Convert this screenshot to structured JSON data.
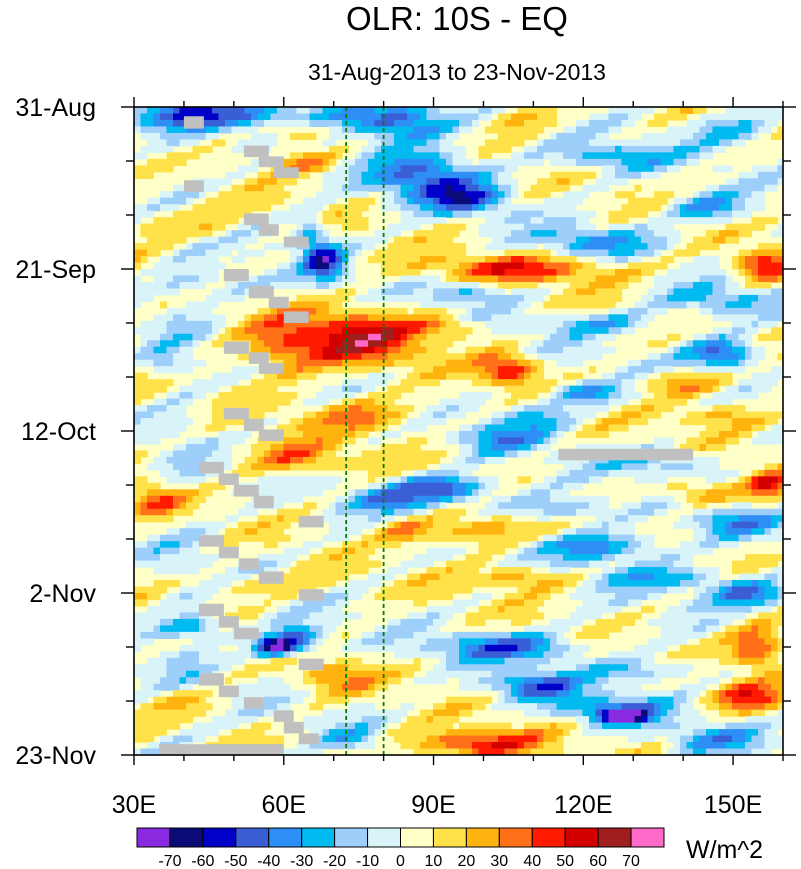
{
  "chart_data": {
    "type": "heatmap",
    "title": "OLR: 10S - EQ",
    "subtitle": "31-Aug-2013 to 23-Nov-2013",
    "x": {
      "range": [
        30,
        160
      ],
      "ticks": [
        30,
        60,
        90,
        120,
        150
      ],
      "tick_labels": [
        "30E",
        "60E",
        "90E",
        "120E",
        "150E"
      ]
    },
    "y": {
      "range_days": [
        0,
        84
      ],
      "ticks": [
        0,
        21,
        42,
        63,
        84
      ],
      "tick_labels": [
        "31-Aug",
        "21-Sep",
        "12-Oct",
        "2-Nov",
        "23-Nov"
      ],
      "minor_tick_step_days": 7
    },
    "reference_lines_lon": [
      72.5,
      80
    ],
    "colorbar": {
      "levels": [
        -70,
        -60,
        -50,
        -40,
        -30,
        -20,
        -10,
        0,
        10,
        20,
        30,
        40,
        50,
        60,
        70
      ],
      "level_labels": [
        "-70",
        "-60",
        "-50",
        "-40",
        "-30",
        "-20",
        "-10",
        "0",
        "10",
        "20",
        "30",
        "40",
        "50",
        "60",
        "70"
      ],
      "colors": [
        "#8a2be2",
        "#0a0a78",
        "#0000c8",
        "#3a5ed6",
        "#2d8ef5",
        "#00baf0",
        "#9dcffa",
        "#d8f4f8",
        "#ffffc8",
        "#ffe14a",
        "#ffb30f",
        "#ff7018",
        "#ff1a00",
        "#d40000",
        "#a01e1e",
        "#ff69c8"
      ],
      "units": "W/m^2"
    },
    "missing_color": "#c0c0c0",
    "missing_blocks": [
      {
        "lon0": 40,
        "lon1": 44,
        "d0": 1.2,
        "d1": 2.8
      },
      {
        "lon0": 52,
        "lon1": 57,
        "d0": 5,
        "d1": 6.5
      },
      {
        "lon0": 55,
        "lon1": 60,
        "d0": 6.4,
        "d1": 7.8
      },
      {
        "lon0": 58,
        "lon1": 63,
        "d0": 7.8,
        "d1": 9.2
      },
      {
        "lon0": 40,
        "lon1": 44,
        "d0": 9.5,
        "d1": 11
      },
      {
        "lon0": 52,
        "lon1": 57,
        "d0": 13.8,
        "d1": 15.3
      },
      {
        "lon0": 55,
        "lon1": 59,
        "d0": 15.2,
        "d1": 16.7
      },
      {
        "lon0": 60,
        "lon1": 65,
        "d0": 16.8,
        "d1": 18.2
      },
      {
        "lon0": 48,
        "lon1": 53,
        "d0": 21,
        "d1": 22.6
      },
      {
        "lon0": 53,
        "lon1": 58,
        "d0": 23.2,
        "d1": 24.8
      },
      {
        "lon0": 57,
        "lon1": 61,
        "d0": 24.6,
        "d1": 26.1
      },
      {
        "lon0": 60,
        "lon1": 65,
        "d0": 26.5,
        "d1": 28
      },
      {
        "lon0": 48,
        "lon1": 53,
        "d0": 30.4,
        "d1": 32
      },
      {
        "lon0": 53,
        "lon1": 57,
        "d0": 31.8,
        "d1": 33.3
      },
      {
        "lon0": 55,
        "lon1": 60,
        "d0": 33.2,
        "d1": 34.6
      },
      {
        "lon0": 48,
        "lon1": 53,
        "d0": 39,
        "d1": 40.5
      },
      {
        "lon0": 52,
        "lon1": 56,
        "d0": 40.4,
        "d1": 42
      },
      {
        "lon0": 55,
        "lon1": 60,
        "d0": 41.8,
        "d1": 43.3
      },
      {
        "lon0": 43,
        "lon1": 48,
        "d0": 46,
        "d1": 47.5
      },
      {
        "lon0": 47,
        "lon1": 51,
        "d0": 47.5,
        "d1": 49
      },
      {
        "lon0": 50,
        "lon1": 55,
        "d0": 49,
        "d1": 50.5
      },
      {
        "lon0": 54,
        "lon1": 58,
        "d0": 50.4,
        "d1": 52
      },
      {
        "lon0": 63,
        "lon1": 68,
        "d0": 53,
        "d1": 54.5
      },
      {
        "lon0": 43,
        "lon1": 48,
        "d0": 55.5,
        "d1": 57
      },
      {
        "lon0": 47,
        "lon1": 51,
        "d0": 57,
        "d1": 58.5
      },
      {
        "lon0": 51,
        "lon1": 55,
        "d0": 58.5,
        "d1": 60
      },
      {
        "lon0": 55,
        "lon1": 60,
        "d0": 60.2,
        "d1": 61.8
      },
      {
        "lon0": 63,
        "lon1": 68,
        "d0": 62.5,
        "d1": 64
      },
      {
        "lon0": 43,
        "lon1": 48,
        "d0": 64.4,
        "d1": 66
      },
      {
        "lon0": 47,
        "lon1": 51,
        "d0": 66,
        "d1": 67.5
      },
      {
        "lon0": 50,
        "lon1": 55,
        "d0": 67.5,
        "d1": 69
      },
      {
        "lon0": 63,
        "lon1": 68,
        "d0": 71.5,
        "d1": 73
      },
      {
        "lon0": 43,
        "lon1": 48,
        "d0": 73.4,
        "d1": 75
      },
      {
        "lon0": 47,
        "lon1": 51,
        "d0": 75,
        "d1": 76.5
      },
      {
        "lon0": 52,
        "lon1": 56,
        "d0": 76.5,
        "d1": 78
      },
      {
        "lon0": 58,
        "lon1": 62,
        "d0": 78.2,
        "d1": 79.7
      },
      {
        "lon0": 60,
        "lon1": 64,
        "d0": 79.7,
        "d1": 81.2
      },
      {
        "lon0": 63,
        "lon1": 67,
        "d0": 81.2,
        "d1": 82.6
      },
      {
        "lon0": 35,
        "lon1": 60,
        "d0": 82.6,
        "d1": 84
      },
      {
        "lon0": 115,
        "lon1": 142,
        "d0": 44.3,
        "d1": 45.8
      }
    ],
    "features": [
      {
        "lon": 48,
        "day": 1,
        "rx": 28,
        "ry": 2.0,
        "amp": -42
      },
      {
        "lon": 63,
        "day": 3,
        "rx": 7,
        "ry": 1.6,
        "amp": 32
      },
      {
        "lon": 64,
        "day": 7,
        "rx": 7,
        "ry": 1.6,
        "amp": 30
      },
      {
        "lon": 83,
        "day": 2,
        "rx": 10,
        "ry": 2.6,
        "amp": -50
      },
      {
        "lon": 89,
        "day": 9,
        "rx": 11,
        "ry": 3.2,
        "amp": -48
      },
      {
        "lon": 97,
        "day": 12,
        "rx": 8,
        "ry": 1.8,
        "amp": -40
      },
      {
        "lon": 125,
        "day": 6.5,
        "rx": 12,
        "ry": 1.7,
        "amp": -32
      },
      {
        "lon": 145,
        "day": 13,
        "rx": 8,
        "ry": 1.8,
        "amp": -35
      },
      {
        "lon": 150,
        "day": 3,
        "rx": 9,
        "ry": 2.2,
        "amp": -28
      },
      {
        "lon": 122,
        "day": 17.5,
        "rx": 12,
        "ry": 2.0,
        "amp": -30
      },
      {
        "lon": 108,
        "day": 1.3,
        "rx": 8,
        "ry": 1.6,
        "amp": 22
      },
      {
        "lon": 40,
        "day": 15,
        "rx": 10,
        "ry": 2.5,
        "amp": 25
      },
      {
        "lon": 68,
        "day": 20,
        "rx": 4,
        "ry": 2.5,
        "amp": -55
      },
      {
        "lon": 65,
        "day": 16,
        "rx": 3,
        "ry": 2.2,
        "amp": -30
      },
      {
        "lon": 108,
        "day": 21,
        "rx": 20,
        "ry": 1.8,
        "amp": 38
      },
      {
        "lon": 156,
        "day": 20.5,
        "rx": 6,
        "ry": 2.0,
        "amp": 45
      },
      {
        "lon": 47,
        "day": 23,
        "rx": 10,
        "ry": 1.8,
        "amp": -20
      },
      {
        "lon": 97,
        "day": 24,
        "rx": 8,
        "ry": 1.5,
        "amp": -28
      },
      {
        "lon": 146,
        "day": 25,
        "rx": 10,
        "ry": 1.8,
        "amp": -30
      },
      {
        "lon": 76,
        "day": 30,
        "rx": 12,
        "ry": 3.5,
        "amp": 48
      },
      {
        "lon": 60,
        "day": 31,
        "rx": 10,
        "ry": 4.0,
        "amp": 35
      },
      {
        "lon": 105,
        "day": 34,
        "rx": 6,
        "ry": 2.0,
        "amp": 45
      },
      {
        "lon": 92,
        "day": 28.5,
        "rx": 8,
        "ry": 1.4,
        "amp": 25
      },
      {
        "lon": 123,
        "day": 28,
        "rx": 14,
        "ry": 1.5,
        "amp": -26
      },
      {
        "lon": 148,
        "day": 32,
        "rx": 7,
        "ry": 2.0,
        "amp": -55
      },
      {
        "lon": 120,
        "day": 37,
        "rx": 8,
        "ry": 1.5,
        "amp": -35
      },
      {
        "lon": 140,
        "day": 36,
        "rx": 9,
        "ry": 1.6,
        "amp": 30
      },
      {
        "lon": 36,
        "day": 33,
        "rx": 4,
        "ry": 1.5,
        "amp": -22
      },
      {
        "lon": 76,
        "day": 40,
        "rx": 12,
        "ry": 2.2,
        "amp": 28
      },
      {
        "lon": 110,
        "day": 40,
        "rx": 8,
        "ry": 2.0,
        "amp": -25
      },
      {
        "lon": 148,
        "day": 40,
        "rx": 10,
        "ry": 1.6,
        "amp": 25
      },
      {
        "lon": 62,
        "day": 45.5,
        "rx": 10,
        "ry": 2.2,
        "amp": 32
      },
      {
        "lon": 104,
        "day": 43,
        "rx": 9,
        "ry": 1.8,
        "amp": -30
      },
      {
        "lon": 135,
        "day": 46,
        "rx": 10,
        "ry": 1.7,
        "amp": -25
      },
      {
        "lon": 92,
        "day": 49.5,
        "rx": 10,
        "ry": 1.8,
        "amp": -55
      },
      {
        "lon": 80,
        "day": 51,
        "rx": 8,
        "ry": 1.6,
        "amp": -30
      },
      {
        "lon": 116,
        "day": 52,
        "rx": 10,
        "ry": 1.6,
        "amp": -30
      },
      {
        "lon": 143,
        "day": 50,
        "rx": 8,
        "ry": 1.6,
        "amp": 30
      },
      {
        "lon": 157,
        "day": 49,
        "rx": 4,
        "ry": 1.8,
        "amp": 40
      },
      {
        "lon": 35,
        "day": 51,
        "rx": 6,
        "ry": 2.2,
        "amp": 32
      },
      {
        "lon": 98,
        "day": 55,
        "rx": 10,
        "ry": 2.0,
        "amp": 35
      },
      {
        "lon": 84,
        "day": 55,
        "rx": 5,
        "ry": 1.6,
        "amp": 25
      },
      {
        "lon": 124,
        "day": 57,
        "rx": 13,
        "ry": 2.0,
        "amp": -38
      },
      {
        "lon": 150,
        "day": 54,
        "rx": 9,
        "ry": 1.8,
        "amp": -32
      },
      {
        "lon": 108,
        "day": 61,
        "rx": 9,
        "ry": 1.6,
        "amp": 30
      },
      {
        "lon": 137,
        "day": 61,
        "rx": 14,
        "ry": 1.5,
        "amp": -28
      },
      {
        "lon": 55,
        "day": 62,
        "rx": 14,
        "ry": 1.5,
        "amp": 18
      },
      {
        "lon": 153,
        "day": 63,
        "rx": 8,
        "ry": 1.6,
        "amp": -45
      },
      {
        "lon": 58,
        "day": 70,
        "rx": 4,
        "ry": 1.3,
        "amp": -75
      },
      {
        "lon": 63,
        "day": 69,
        "rx": 5,
        "ry": 1.8,
        "amp": -50
      },
      {
        "lon": 42,
        "day": 67.5,
        "rx": 7,
        "ry": 1.5,
        "amp": -35
      },
      {
        "lon": 105,
        "day": 70,
        "rx": 14,
        "ry": 1.8,
        "amp": -45
      },
      {
        "lon": 155,
        "day": 70,
        "rx": 6,
        "ry": 2.8,
        "amp": 45
      },
      {
        "lon": 132,
        "day": 73,
        "rx": 12,
        "ry": 1.6,
        "amp": -25
      },
      {
        "lon": 70,
        "day": 74,
        "rx": 7,
        "ry": 2.2,
        "amp": 25
      },
      {
        "lon": 110,
        "day": 75,
        "rx": 9,
        "ry": 1.7,
        "amp": -45
      },
      {
        "lon": 153,
        "day": 76.5,
        "rx": 7,
        "ry": 1.8,
        "amp": 38
      },
      {
        "lon": 125,
        "day": 78,
        "rx": 12,
        "ry": 1.8,
        "amp": -35
      },
      {
        "lon": 128,
        "day": 79,
        "rx": 5,
        "ry": 1.0,
        "amp": -65
      },
      {
        "lon": 98,
        "day": 82.5,
        "rx": 13,
        "ry": 1.8,
        "amp": 48
      },
      {
        "lon": 74,
        "day": 82,
        "rx": 6,
        "ry": 1.6,
        "amp": -22
      },
      {
        "lon": 146,
        "day": 82,
        "rx": 10,
        "ry": 1.8,
        "amp": -28
      },
      {
        "lon": 40,
        "day": 77,
        "rx": 6,
        "ry": 1.8,
        "amp": 22
      }
    ]
  }
}
